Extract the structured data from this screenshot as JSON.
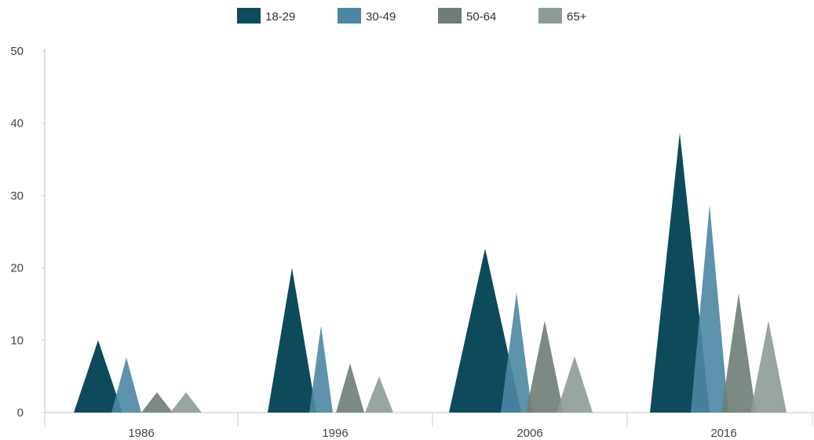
{
  "chart_data": {
    "type": "area",
    "categories": [
      "1986",
      "1996",
      "2006",
      "2016"
    ],
    "series": [
      {
        "name": "18-29",
        "values": [
          10,
          20,
          22.7,
          38.7
        ],
        "color": "#0d4a5b"
      },
      {
        "name": "30-49",
        "values": [
          7.6,
          12,
          16.6,
          28.7
        ],
        "color": "#4b87a3"
      },
      {
        "name": "50-64",
        "values": [
          2.8,
          6.8,
          12.7,
          16.5
        ],
        "color": "#6f7d76"
      },
      {
        "name": "65+",
        "values": [
          2.8,
          5,
          7.8,
          12.7
        ],
        "color": "#8d9c95"
      }
    ],
    "ylim": [
      0,
      50
    ],
    "yticks": [
      0,
      10,
      20,
      30,
      40,
      50
    ],
    "legend_position": "top-center",
    "grid": false
  }
}
